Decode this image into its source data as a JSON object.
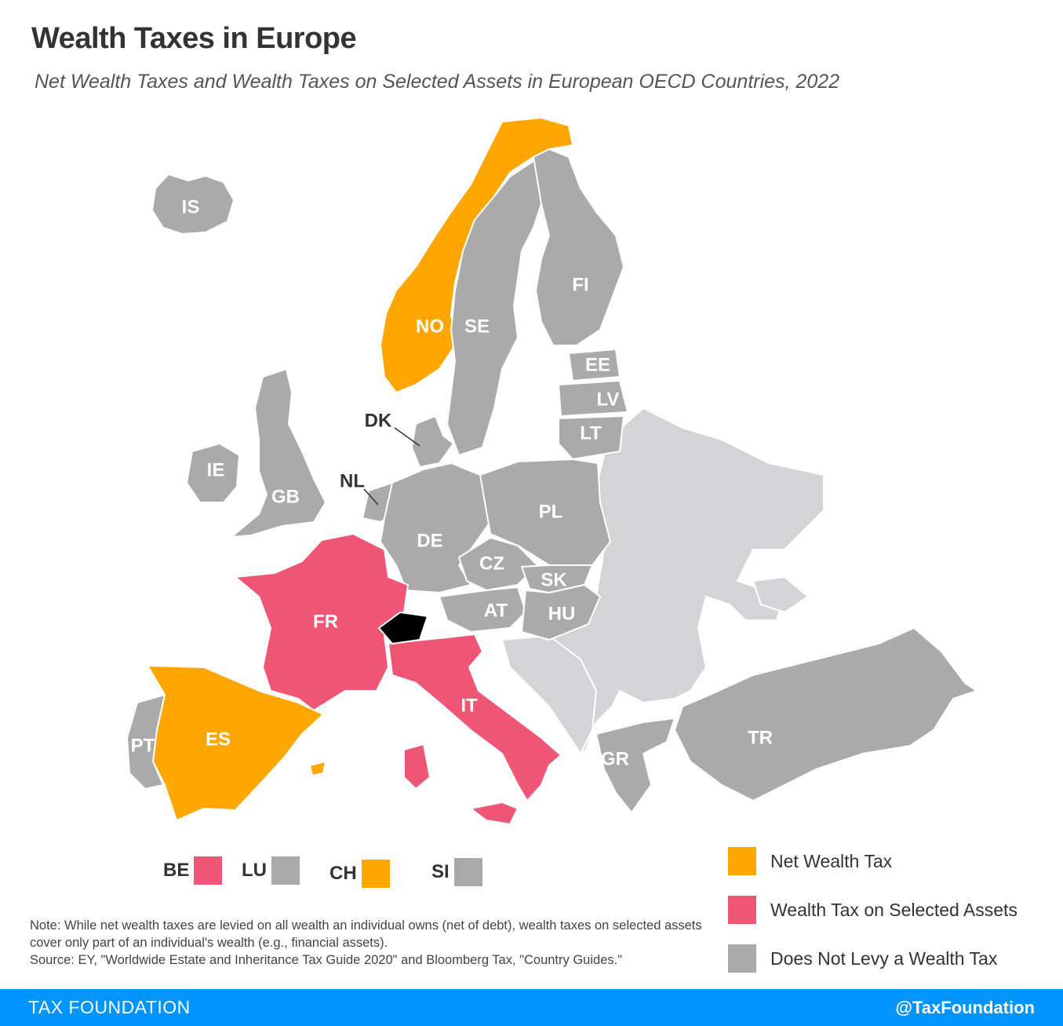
{
  "header": {
    "title": "Wealth Taxes in Europe",
    "subtitle": "Net Wealth Taxes and Wealth Taxes on Selected Assets in European OECD Countries, 2022"
  },
  "colors": {
    "net_wealth_tax": "#ffa600",
    "selected_assets": "#ef5675",
    "no_wealth_tax": "#aaaaaa",
    "non_oecd": "#d4d4d6",
    "footer_bg": "#0094ff"
  },
  "map": {
    "countries": [
      {
        "code": "IS",
        "category": "none"
      },
      {
        "code": "NO",
        "category": "net"
      },
      {
        "code": "SE",
        "category": "none"
      },
      {
        "code": "FI",
        "category": "none"
      },
      {
        "code": "EE",
        "category": "none"
      },
      {
        "code": "LV",
        "category": "none"
      },
      {
        "code": "LT",
        "category": "none"
      },
      {
        "code": "DK",
        "category": "none"
      },
      {
        "code": "IE",
        "category": "none"
      },
      {
        "code": "GB",
        "category": "none"
      },
      {
        "code": "NL",
        "category": "none"
      },
      {
        "code": "DE",
        "category": "none"
      },
      {
        "code": "PL",
        "category": "none"
      },
      {
        "code": "CZ",
        "category": "none"
      },
      {
        "code": "SK",
        "category": "none"
      },
      {
        "code": "AT",
        "category": "none"
      },
      {
        "code": "HU",
        "category": "none"
      },
      {
        "code": "FR",
        "category": "selected"
      },
      {
        "code": "IT",
        "category": "selected"
      },
      {
        "code": "ES",
        "category": "net"
      },
      {
        "code": "PT",
        "category": "none"
      },
      {
        "code": "GR",
        "category": "none"
      },
      {
        "code": "TR",
        "category": "none"
      }
    ]
  },
  "small_states": [
    {
      "code": "BE",
      "category": "selected"
    },
    {
      "code": "LU",
      "category": "none"
    },
    {
      "code": "CH",
      "category": "net"
    },
    {
      "code": "SI",
      "category": "none"
    }
  ],
  "legend": {
    "net": "Net Wealth Tax",
    "selected": "Wealth Tax on Selected Assets",
    "none": "Does Not Levy a Wealth Tax"
  },
  "note": "Note: While net wealth taxes are levied on all wealth an individual owns (net of debt), wealth taxes on selected assets cover only part of an individual's wealth (e.g., financial assets).",
  "source": "Source: EY, \"Worldwide Estate and Inheritance Tax Guide 2020\" and Bloomberg Tax, \"Country Guides.\"",
  "footer": {
    "brand": "TAX FOUNDATION",
    "handle": "@TaxFoundation"
  }
}
